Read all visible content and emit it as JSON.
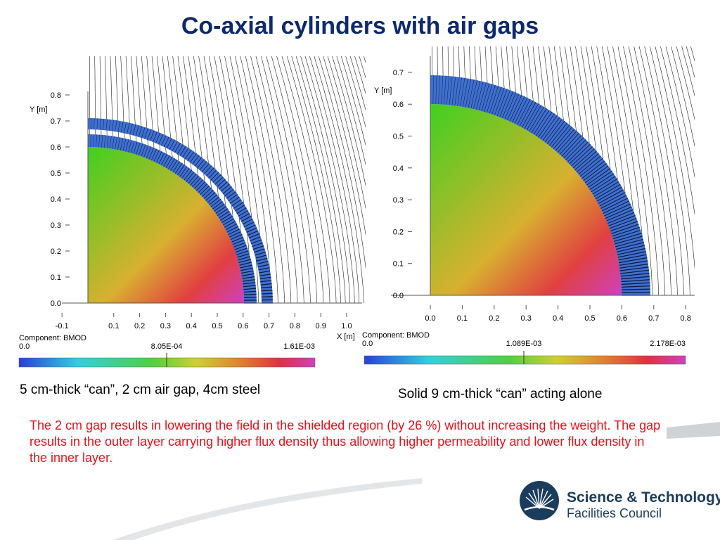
{
  "slide": {
    "title": "Co-axial cylinders with air gaps",
    "caption_left": "5 cm-thick “can”, 2 cm air gap, 4cm steel",
    "caption_right": "Solid 9 cm-thick “can” acting alone",
    "note": "The 2 cm gap results in lowering the field in the shielded region (by 26 %) without increasing the weight. The gap results in the outer layer carrying higher flux density thus allowing higher permeability and lower flux density in the inner layer.",
    "logo_line1": "Science & Technology",
    "logo_line2": "Facilities Council"
  },
  "colors": {
    "title": "#0d2a6e",
    "note": "#e8101a",
    "logo": "#1b3d5d",
    "steel": "#3f6fd0",
    "gradient": [
      "#2a40d8",
      "#30d0e0",
      "#50d040",
      "#d0d030",
      "#e08030",
      "#e03040",
      "#d040c0"
    ]
  },
  "plots": {
    "left": {
      "y_axis_label": "Y [m]",
      "x_axis_label": "X [m]",
      "y_ticks": [
        "0.0",
        "0.1",
        "0.2",
        "0.3",
        "0.4",
        "0.5",
        "0.6",
        "0.7",
        "0.8"
      ],
      "x_ticks": [
        "-0.1",
        "0.1",
        "0.2",
        "0.3",
        "0.4",
        "0.5",
        "0.6",
        "0.7",
        "0.8",
        "0.9",
        "1.0"
      ],
      "component": "Component: BMOD",
      "scale_min": "0.0",
      "scale_mid": "8.05E-04",
      "scale_max": "1.61E-03"
    },
    "right": {
      "y_axis_label": "Y [m]",
      "x_axis_label": "",
      "y_ticks": [
        "0.0",
        "0.1",
        "0.2",
        "0.3",
        "0.4",
        "0.5",
        "0.6",
        "0.7"
      ],
      "x_ticks": [
        "0.0",
        "0.1",
        "0.2",
        "0.3",
        "0.4",
        "0.5",
        "0.6",
        "0.7",
        "0.8"
      ],
      "component": "Component: BMOD",
      "scale_min": "0.0",
      "scale_mid": "1.089E-03",
      "scale_max": "2.178E-03"
    }
  }
}
